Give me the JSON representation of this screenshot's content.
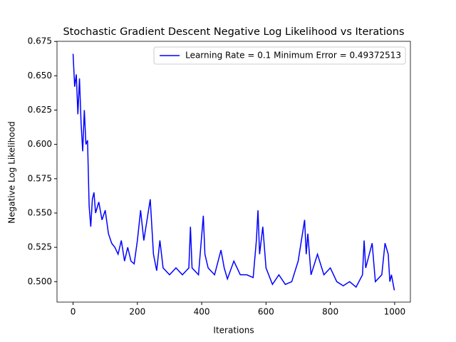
{
  "chart_data": {
    "type": "line",
    "title": "Stochastic Gradient Descent Negative Log Likelihood vs Iterations",
    "x_label": "Iterations",
    "y_label": "Negative Log Likelihood",
    "xlim": [
      -49.95,
      1048.95
    ],
    "ylim": [
      0.4851,
      0.6751
    ],
    "xticks": [
      0,
      200,
      400,
      600,
      800,
      1000
    ],
    "yticks": [
      {
        "value": 0.5,
        "label": "0.500"
      },
      0.525,
      {
        "value": 0.55,
        "label": "0.550"
      },
      0.575,
      {
        "value": 0.6,
        "label": "0.600"
      },
      0.625,
      {
        "value": 0.65,
        "label": "0.650"
      },
      0.675
    ],
    "legend": "upper right",
    "x": [
      0,
      5,
      10,
      15,
      20,
      25,
      30,
      35,
      40,
      45,
      50,
      55,
      60,
      65,
      70,
      80,
      90,
      100,
      110,
      120,
      130,
      140,
      150,
      160,
      170,
      180,
      190,
      200,
      210,
      220,
      230,
      240,
      250,
      260,
      270,
      280,
      300,
      320,
      340,
      360,
      365,
      370,
      390,
      405,
      410,
      420,
      440,
      460,
      470,
      480,
      500,
      520,
      540,
      560,
      570,
      575,
      580,
      590,
      600,
      620,
      640,
      660,
      680,
      700,
      720,
      725,
      730,
      740,
      760,
      780,
      800,
      820,
      840,
      860,
      880,
      900,
      905,
      910,
      930,
      940,
      960,
      970,
      980,
      985,
      990,
      999
    ],
    "series": [
      {
        "name": "Learning Rate = 0.1 Minimum Error = 0.49372513",
        "color": "#0000ff",
        "values": [
          0.666,
          0.642,
          0.651,
          0.622,
          0.648,
          0.615,
          0.595,
          0.625,
          0.6,
          0.603,
          0.555,
          0.54,
          0.56,
          0.565,
          0.55,
          0.558,
          0.545,
          0.552,
          0.535,
          0.528,
          0.525,
          0.52,
          0.53,
          0.515,
          0.525,
          0.515,
          0.513,
          0.53,
          0.552,
          0.53,
          0.545,
          0.56,
          0.52,
          0.508,
          0.53,
          0.51,
          0.505,
          0.51,
          0.505,
          0.51,
          0.54,
          0.51,
          0.505,
          0.548,
          0.52,
          0.51,
          0.505,
          0.523,
          0.51,
          0.502,
          0.515,
          0.505,
          0.505,
          0.503,
          0.53,
          0.552,
          0.52,
          0.54,
          0.51,
          0.498,
          0.505,
          0.498,
          0.5,
          0.515,
          0.545,
          0.52,
          0.535,
          0.505,
          0.52,
          0.505,
          0.51,
          0.5,
          0.497,
          0.5,
          0.496,
          0.505,
          0.53,
          0.51,
          0.528,
          0.5,
          0.505,
          0.528,
          0.52,
          0.5,
          0.505,
          0.4937
        ]
      }
    ]
  }
}
